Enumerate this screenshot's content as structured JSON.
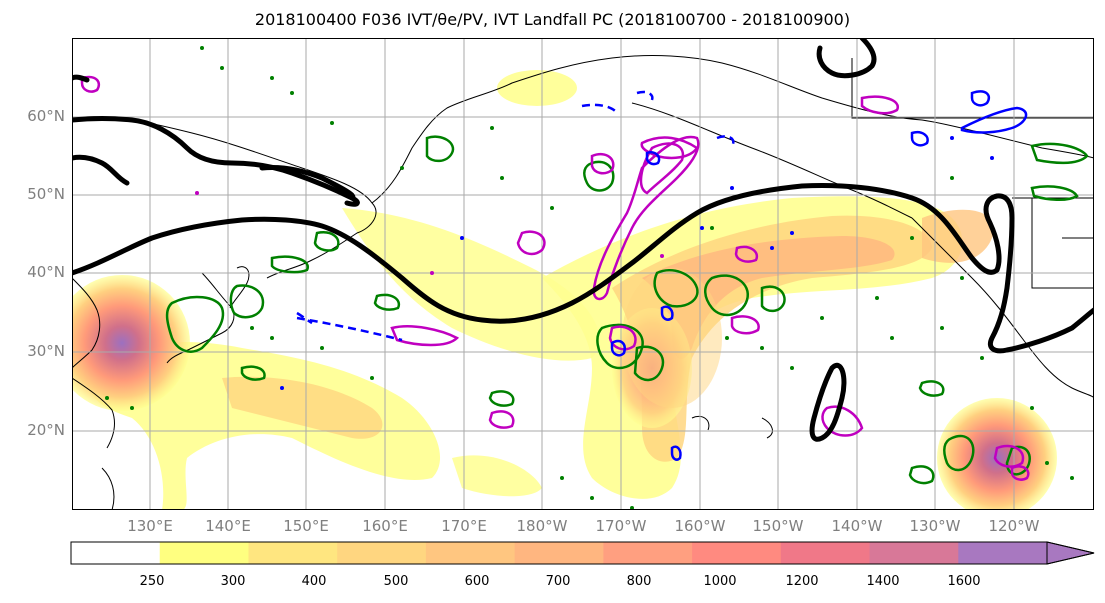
{
  "title": "2018100400 F036 IVT/θe/PV, IVT Landfall PC (2018100700 - 2018100900)",
  "lat_labels": [
    "60°N",
    "50°N",
    "40°N",
    "30°N",
    "20°N"
  ],
  "lon_labels": [
    "130°E",
    "140°E",
    "150°E",
    "160°E",
    "170°E",
    "180°W",
    "170°W",
    "160°W",
    "150°W",
    "140°W",
    "130°W",
    "120°W"
  ],
  "colorbar": {
    "ticks": [
      "250",
      "300",
      "400",
      "500",
      "600",
      "700",
      "800",
      "1000",
      "1200",
      "1400",
      "1600"
    ],
    "colors": [
      "#ffffff",
      "#ffff80",
      "#ffe680",
      "#ffd680",
      "#ffc680",
      "#ffb680",
      "#ff9f80",
      "#ff8a80",
      "#f07888",
      "#d87898",
      "#a878c0"
    ]
  },
  "colors": {
    "ivt_fill": "#ffcc66",
    "contour_black": "#000000",
    "contour_green": "#008000",
    "contour_magenta": "#c000c0",
    "contour_blue": "#0000ff",
    "gridline": "#aaaaaa",
    "coastline": "#000000"
  }
}
